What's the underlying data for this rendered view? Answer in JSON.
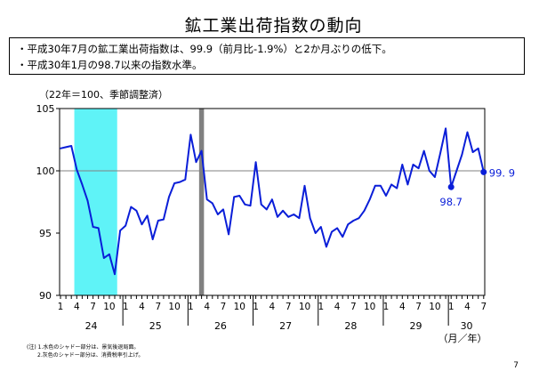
{
  "title": "鉱工業出荷指数の動向",
  "summary": {
    "line1": "・平成30年7月の鉱工業出荷指数は、99.9（前月比-1.9%）と2か月ぶりの低下。",
    "line2": "・平成30年1月の98.7以来の指数水準。"
  },
  "unit_label": "（22年＝100、季節調整済）",
  "notes": {
    "note1": "(注) 1.水色のシャドー部分は、景気後退局面。",
    "note2": "2.灰色のシャドー部分は、消費税率引上げ。"
  },
  "page_number": "7",
  "chart_data": {
    "type": "line",
    "title": "",
    "xlabel": "（月／年）",
    "ylabel": "",
    "ylim": [
      90,
      105
    ],
    "yticks": [
      90,
      95,
      100,
      105
    ],
    "reference_line": 100,
    "x_start": "2012-01",
    "month_tick_labels": [
      "1",
      "4",
      "7",
      "10"
    ],
    "year_labels": [
      {
        "label": "24",
        "start": 0
      },
      {
        "label": "25",
        "start": 12
      },
      {
        "label": "26",
        "start": 24
      },
      {
        "label": "27",
        "start": 36
      },
      {
        "label": "28",
        "start": 48
      },
      {
        "label": "29",
        "start": 60
      },
      {
        "label": "30",
        "start": 72
      }
    ],
    "shaded_regions": [
      {
        "name": "recession",
        "start": 3,
        "end": 10,
        "color": "#5ff3f7"
      },
      {
        "name": "tax_hike",
        "start": 26,
        "end": 26,
        "color": "#808080"
      }
    ],
    "series": [
      {
        "color": "#0a1ed8",
        "values": [
          101.8,
          101.9,
          102.0,
          100.1,
          98.9,
          97.6,
          95.5,
          95.4,
          93.0,
          93.3,
          91.7,
          95.2,
          95.6,
          97.1,
          96.8,
          95.7,
          96.4,
          94.5,
          96.0,
          96.1,
          97.9,
          99.0,
          99.1,
          99.3,
          102.9,
          100.7,
          101.6,
          97.7,
          97.4,
          96.5,
          96.9,
          94.9,
          97.9,
          98.0,
          97.3,
          97.2,
          100.7,
          97.3,
          96.9,
          97.7,
          96.3,
          96.8,
          96.3,
          96.5,
          96.2,
          98.8,
          96.2,
          95.0,
          95.5,
          93.9,
          95.1,
          95.4,
          94.7,
          95.7,
          96.0,
          96.2,
          96.8,
          97.7,
          98.8,
          98.8,
          98.0,
          98.9,
          98.6,
          100.5,
          98.9,
          100.5,
          100.2,
          101.6,
          100.0,
          99.5,
          101.4,
          103.4,
          98.7,
          100.0,
          101.3,
          103.1,
          101.5,
          101.8,
          99.9
        ]
      }
    ],
    "annotations": [
      {
        "label": "98.7",
        "month_index": 72,
        "value": 98.7
      },
      {
        "label": "99. 9",
        "month_index": 78,
        "value": 99.9
      }
    ]
  }
}
